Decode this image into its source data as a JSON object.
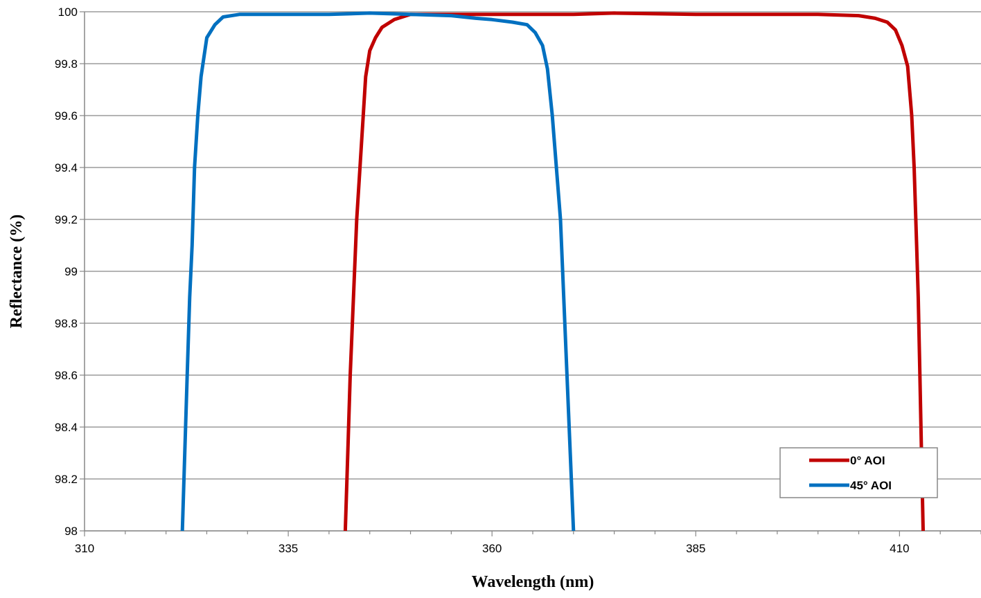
{
  "chart_data": {
    "type": "line",
    "xlabel": "Wavelength (nm)",
    "ylabel": "Reflectance (%)",
    "xlim": [
      310,
      420
    ],
    "ylim": [
      98,
      100
    ],
    "x_ticks": [
      310,
      335,
      360,
      385,
      410
    ],
    "x_tick_labels": [
      "310",
      "335",
      "360",
      "385",
      "410"
    ],
    "x_minor_step": 5,
    "y_ticks": [
      98,
      98.2,
      98.4,
      98.6,
      98.8,
      99,
      99.2,
      99.4,
      99.6,
      99.8,
      100
    ],
    "y_tick_labels": [
      "98",
      "98.2",
      "98.4",
      "98.6",
      "98.8",
      "99",
      "99.2",
      "99.4",
      "99.6",
      "99.8",
      "100"
    ],
    "grid": "horizontal",
    "legend_position": "bottom-right",
    "series": [
      {
        "name": "0° AOI",
        "color": "#C00000",
        "points": [
          [
            342.0,
            98.0
          ],
          [
            342.3,
            98.3
          ],
          [
            342.6,
            98.6
          ],
          [
            343.0,
            98.9
          ],
          [
            343.4,
            99.2
          ],
          [
            343.8,
            99.4
          ],
          [
            344.2,
            99.6
          ],
          [
            344.5,
            99.75
          ],
          [
            345.0,
            99.85
          ],
          [
            345.7,
            99.9
          ],
          [
            346.5,
            99.94
          ],
          [
            348,
            99.97
          ],
          [
            350,
            99.99
          ],
          [
            352,
            99.99
          ],
          [
            356,
            99.99
          ],
          [
            360,
            99.99
          ],
          [
            370,
            99.99
          ],
          [
            375,
            99.995
          ],
          [
            385,
            99.99
          ],
          [
            395,
            99.99
          ],
          [
            400,
            99.99
          ],
          [
            405,
            99.985
          ],
          [
            407,
            99.975
          ],
          [
            408.5,
            99.96
          ],
          [
            409.5,
            99.93
          ],
          [
            410.3,
            99.87
          ],
          [
            411,
            99.79
          ],
          [
            411.5,
            99.6
          ],
          [
            411.8,
            99.4
          ],
          [
            412.1,
            99.1
          ],
          [
            412.3,
            98.9
          ],
          [
            412.5,
            98.6
          ],
          [
            412.7,
            98.3
          ],
          [
            412.9,
            98.0
          ]
        ]
      },
      {
        "name": "45° AOI",
        "color": "#0070C0",
        "points": [
          [
            322.0,
            98.0
          ],
          [
            322.3,
            98.3
          ],
          [
            322.6,
            98.6
          ],
          [
            322.9,
            98.9
          ],
          [
            323.2,
            99.1
          ],
          [
            323.5,
            99.4
          ],
          [
            323.9,
            99.6
          ],
          [
            324.3,
            99.75
          ],
          [
            325.0,
            99.9
          ],
          [
            326,
            99.95
          ],
          [
            327,
            99.98
          ],
          [
            329,
            99.99
          ],
          [
            333,
            99.99
          ],
          [
            340,
            99.99
          ],
          [
            345,
            99.995
          ],
          [
            350,
            99.99
          ],
          [
            355,
            99.985
          ],
          [
            358,
            99.975
          ],
          [
            360,
            99.97
          ],
          [
            362.5,
            99.96
          ],
          [
            364.3,
            99.95
          ],
          [
            365.3,
            99.92
          ],
          [
            366.2,
            99.87
          ],
          [
            366.8,
            99.78
          ],
          [
            367.4,
            99.6
          ],
          [
            367.9,
            99.4
          ],
          [
            368.4,
            99.2
          ],
          [
            368.8,
            98.9
          ],
          [
            369.2,
            98.6
          ],
          [
            369.6,
            98.3
          ],
          [
            370.0,
            98.0
          ]
        ]
      }
    ]
  }
}
